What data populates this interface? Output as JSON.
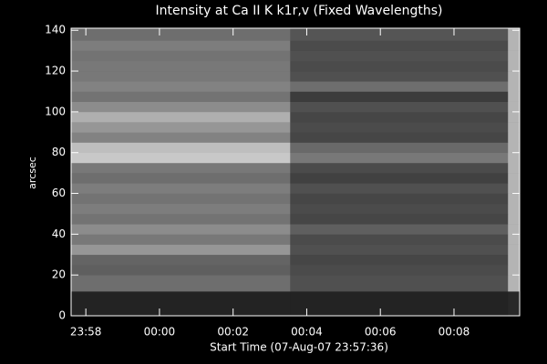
{
  "chart_data": {
    "type": "heatmap",
    "title": "Intensity at Ca II K k1r,v (Fixed Wavelengths)",
    "x_label": "Start Time (07-Aug-07 23:57:36)",
    "y_label": "arcsec",
    "xlim": [
      0,
      731
    ],
    "ylim": [
      0,
      141
    ],
    "xticks": [
      {
        "value": 24,
        "label": "23:58"
      },
      {
        "value": 144,
        "label": "00:00"
      },
      {
        "value": 264,
        "label": "00:02"
      },
      {
        "value": 384,
        "label": "00:04"
      },
      {
        "value": 504,
        "label": "00:06"
      },
      {
        "value": 624,
        "label": "00:08"
      }
    ],
    "yticks": [
      0,
      20,
      40,
      60,
      80,
      100,
      120,
      140
    ],
    "x_edges": [
      0,
      357,
      712,
      731
    ],
    "y_edges": [
      0,
      12,
      20,
      25,
      30,
      35,
      40,
      45,
      50,
      55,
      60,
      65,
      70,
      75,
      80,
      85,
      90,
      95,
      100,
      105,
      110,
      115,
      120,
      125,
      130,
      135,
      141
    ],
    "values": [
      [
        35,
        35,
        40
      ],
      [
        110,
        80,
        180
      ],
      [
        95,
        75,
        180
      ],
      [
        100,
        70,
        180
      ],
      [
        150,
        80,
        180
      ],
      [
        120,
        75,
        180
      ],
      [
        140,
        95,
        180
      ],
      [
        115,
        70,
        180
      ],
      [
        125,
        75,
        180
      ],
      [
        115,
        70,
        180
      ],
      [
        125,
        80,
        180
      ],
      [
        110,
        65,
        180
      ],
      [
        120,
        75,
        180
      ],
      [
        200,
        120,
        180
      ],
      [
        190,
        105,
        180
      ],
      [
        130,
        70,
        180
      ],
      [
        150,
        75,
        180
      ],
      [
        175,
        70,
        180
      ],
      [
        140,
        80,
        180
      ],
      [
        115,
        60,
        180
      ],
      [
        130,
        110,
        180
      ],
      [
        120,
        80,
        180
      ],
      [
        120,
        75,
        180
      ],
      [
        115,
        80,
        180
      ],
      [
        125,
        75,
        180
      ],
      [
        110,
        85,
        180
      ]
    ]
  }
}
